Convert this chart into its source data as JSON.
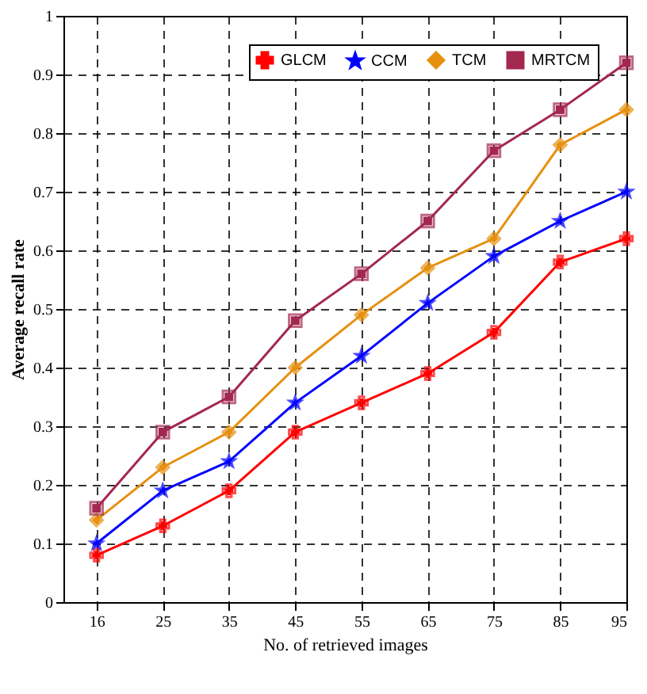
{
  "chart_data": {
    "type": "line",
    "categories": [
      "16",
      "25",
      "35",
      "45",
      "55",
      "65",
      "75",
      "85",
      "95"
    ],
    "xlabel": "No. of retrieved images",
    "ylabel": "Average recall rate",
    "ylim": [
      0,
      1
    ],
    "yticks": [
      0,
      0.1,
      0.2,
      0.3,
      0.4,
      0.5,
      0.6,
      0.7,
      0.8,
      0.9,
      1
    ],
    "grid": true,
    "legend": "top right",
    "line_style": "solid",
    "series": [
      {
        "name": "GLCM",
        "color": "#ff0000",
        "marker": "cross",
        "values": [
          0.08,
          0.13,
          0.19,
          0.29,
          0.34,
          0.39,
          0.46,
          0.58,
          0.62
        ]
      },
      {
        "name": "CCM",
        "color": "#0000ff",
        "marker": "star",
        "values": [
          0.1,
          0.19,
          0.24,
          0.34,
          0.42,
          0.51,
          0.59,
          0.65,
          0.7
        ]
      },
      {
        "name": "TCM",
        "color": "#e69010",
        "marker": "diamond",
        "values": [
          0.14,
          0.23,
          0.29,
          0.4,
          0.49,
          0.57,
          0.62,
          0.78,
          0.84
        ]
      },
      {
        "name": "MRTCM",
        "color": "#a3284f",
        "marker": "square",
        "values": [
          0.16,
          0.29,
          0.35,
          0.48,
          0.56,
          0.65,
          0.77,
          0.84,
          0.92
        ]
      }
    ]
  }
}
